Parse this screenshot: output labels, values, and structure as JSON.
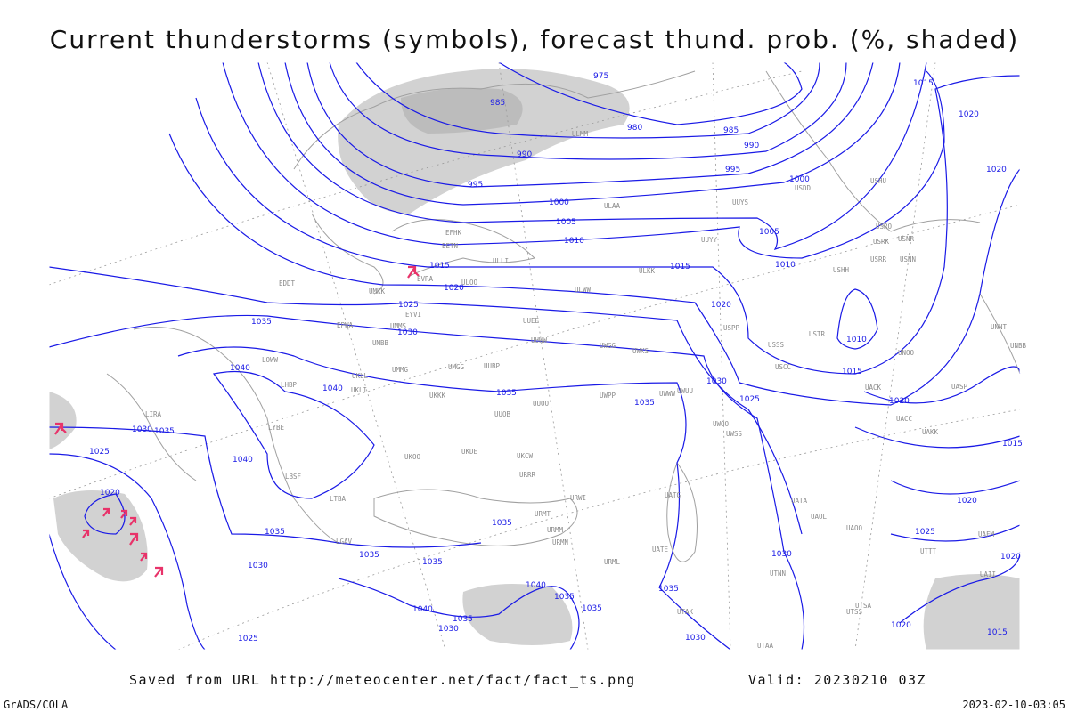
{
  "title": "Current thunderstorms (symbols), forecast thund. prob. (%, shaded)",
  "isobar_labels": [
    975,
    985,
    980,
    985,
    990,
    990,
    995,
    995,
    1000,
    1000,
    1005,
    1005,
    1010,
    1010,
    1015,
    1015,
    1020,
    1020,
    1025,
    1030,
    1035,
    1040,
    1040,
    1035,
    1035,
    1030,
    1025,
    1010,
    1015,
    1020,
    1015,
    1020,
    1020,
    1015,
    1020,
    1025,
    1020,
    1020,
    1015,
    1030,
    1035,
    1025,
    1040,
    1020,
    1035,
    1035,
    1035,
    1035,
    1030,
    1040,
    1035,
    1035,
    1035,
    1040,
    1035,
    1030,
    1030,
    1025,
    1030
  ],
  "station_labels": [
    "ULMM",
    "ULAA",
    "UUYS",
    "USDD",
    "USHU",
    "EFHK",
    "EETN",
    "ULLI",
    "EVRA",
    "ULOO",
    "ULWW",
    "ULKK",
    "UUYY",
    "UMKK",
    "EYVI",
    "UMMS",
    "UMBB",
    "EPWA",
    "EDDT",
    "UUEE",
    "UUWW",
    "UWGG",
    "UWKS",
    "USPP",
    "USSS",
    "USTR",
    "USCC",
    "UACC",
    "UACK",
    "UASP",
    "UAKK",
    "USRR",
    "USRK",
    "USRO",
    "USNR",
    "USNN",
    "USHH",
    "UNNT",
    "UNBB",
    "UNOO",
    "UUOO",
    "UKKK",
    "UKLL",
    "UKLI",
    "LHBP",
    "LOWW",
    "LIRA",
    "LYBE",
    "LBSF",
    "LGAV",
    "LTBA",
    "UKOO",
    "UKDE",
    "UKCW",
    "URRR",
    "URWI",
    "URMT",
    "URMM",
    "URMN",
    "URML",
    "UATE",
    "UATG",
    "UATA",
    "UAOL",
    "UAOO",
    "UTAK",
    "UTAA",
    "UTSA",
    "UTSS",
    "UTTT",
    "UAFM",
    "UAII",
    "UTNN",
    "UWUU",
    "UWOO",
    "UWSS",
    "UWWW",
    "UWPP",
    "UUBP",
    "UUOB",
    "UMGG",
    "UMMG"
  ],
  "footer": {
    "source": "Saved from URL http://meteocenter.net/fact/fact_ts.png",
    "valid": "Valid: 20230210 03Z",
    "software": "GrADS/COLA",
    "timestamp": "2023-02-10-03:05"
  }
}
